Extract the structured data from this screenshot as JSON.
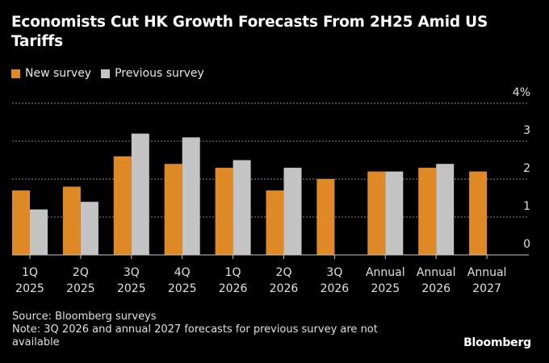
{
  "title": "Economists Cut HK Growth Forecasts From 2H25 Amid US Tariffs",
  "legend": [
    {
      "label": "New survey",
      "color": "#E08A27"
    },
    {
      "label": "Previous survey",
      "color": "#C4C4C4"
    }
  ],
  "footer": {
    "source": "Source: Bloomberg surveys",
    "note": "Note: 3Q 2026 and annual 2027 forecasts for previous survey are not available"
  },
  "brand": "Bloomberg",
  "chart_data": {
    "type": "bar",
    "title": "Economists Cut HK Growth Forecasts From 2H25 Amid US Tariffs",
    "xlabel": "",
    "ylabel": "",
    "ylim": [
      0,
      4
    ],
    "yticks": [
      0,
      1,
      2,
      3,
      4
    ],
    "ytick_labels": [
      "0",
      "1",
      "2",
      "3",
      "4%"
    ],
    "grid": true,
    "legend_position": "top-left",
    "categories": [
      [
        "1Q",
        "2025"
      ],
      [
        "2Q",
        "2025"
      ],
      [
        "3Q",
        "2025"
      ],
      [
        "4Q",
        "2025"
      ],
      [
        "1Q",
        "2026"
      ],
      [
        "2Q",
        "2026"
      ],
      [
        "3Q",
        "2026"
      ],
      [
        "Annual",
        "2025"
      ],
      [
        "Annual",
        "2026"
      ],
      [
        "Annual",
        "2027"
      ]
    ],
    "series": [
      {
        "name": "New survey",
        "color": "#E08A27",
        "values": [
          1.7,
          1.8,
          2.6,
          2.4,
          2.3,
          1.7,
          2.0,
          2.2,
          2.3,
          2.2
        ]
      },
      {
        "name": "Previous survey",
        "color": "#C4C4C4",
        "values": [
          1.2,
          1.4,
          3.2,
          3.1,
          2.5,
          2.3,
          null,
          2.2,
          2.4,
          null
        ]
      }
    ]
  }
}
